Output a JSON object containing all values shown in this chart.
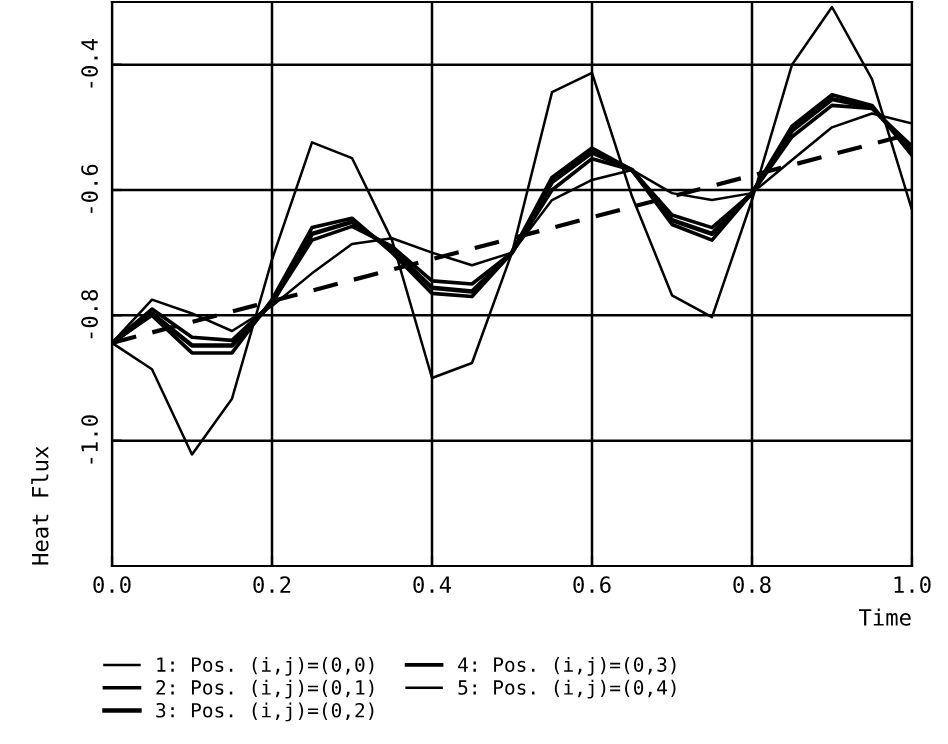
{
  "chart_data": {
    "type": "line",
    "xlabel": "Time",
    "ylabel": "Heat Flux",
    "x": [
      0.0,
      0.05,
      0.1,
      0.15,
      0.2,
      0.25,
      0.3,
      0.35,
      0.4,
      0.45,
      0.5,
      0.55,
      0.6,
      0.65,
      0.7,
      0.75,
      0.8,
      0.85,
      0.9,
      0.95,
      1.0
    ],
    "series": [
      {
        "name": "1: Pos. (i,j)=(0,0)",
        "color": "#000000",
        "values": [
          -0.844,
          -0.775,
          -0.797,
          -0.825,
          -0.785,
          -0.733,
          -0.686,
          -0.677,
          -0.7,
          -0.72,
          -0.7,
          -0.616,
          -0.584,
          -0.568,
          -0.605,
          -0.616,
          -0.605,
          -0.552,
          -0.5,
          -0.478,
          -0.494
        ]
      },
      {
        "name": "2: Pos. (i,j)=(0,1)",
        "color": "#000000",
        "values": [
          -0.844,
          -0.79,
          -0.835,
          -0.84,
          -0.78,
          -0.68,
          -0.658,
          -0.69,
          -0.745,
          -0.75,
          -0.7,
          -0.6,
          -0.55,
          -0.568,
          -0.64,
          -0.66,
          -0.605,
          -0.515,
          -0.465,
          -0.47,
          -0.53
        ]
      },
      {
        "name": "3: Pos. (i,j)=(0,2)",
        "color": "#000000",
        "values": [
          -0.844,
          -0.797,
          -0.848,
          -0.848,
          -0.78,
          -0.67,
          -0.651,
          -0.695,
          -0.756,
          -0.762,
          -0.7,
          -0.587,
          -0.54,
          -0.568,
          -0.648,
          -0.67,
          -0.605,
          -0.505,
          -0.455,
          -0.468,
          -0.537
        ]
      },
      {
        "name": "4: Pos. (i,j)=(0,3)",
        "color": "#000000",
        "values": [
          -0.844,
          -0.8,
          -0.86,
          -0.86,
          -0.775,
          -0.66,
          -0.645,
          -0.7,
          -0.765,
          -0.77,
          -0.7,
          -0.58,
          -0.533,
          -0.568,
          -0.655,
          -0.68,
          -0.605,
          -0.498,
          -0.448,
          -0.465,
          -0.545
        ]
      },
      {
        "name": "5: Pos. (i,j)=(0,4)",
        "color": "#000000",
        "values": [
          -0.844,
          -0.886,
          -1.022,
          -0.933,
          -0.711,
          -0.524,
          -0.549,
          -0.68,
          -0.9,
          -0.876,
          -0.7,
          -0.444,
          -0.413,
          -0.61,
          -0.768,
          -0.803,
          -0.616,
          -0.4,
          -0.308,
          -0.423,
          -0.632
        ]
      },
      {
        "color": "#000000",
        "x": [
          0.0,
          1.0
        ],
        "values": [
          -0.844,
          -0.51
        ],
        "line_style": "dashed"
      }
    ],
    "xlim": [
      0.0,
      1.0
    ],
    "ylim": [
      -1.2,
      -0.3
    ],
    "xticks": [
      {
        "value": 0,
        "label": "0.0"
      },
      0.2,
      0.4,
      0.6,
      0.8,
      {
        "value": 1,
        "label": "1.0"
      }
    ],
    "yticks": [
      -0.4,
      -0.6,
      -0.8,
      {
        "value": -1,
        "label": "-1.0"
      }
    ],
    "grid": true,
    "legend": "bottom"
  }
}
